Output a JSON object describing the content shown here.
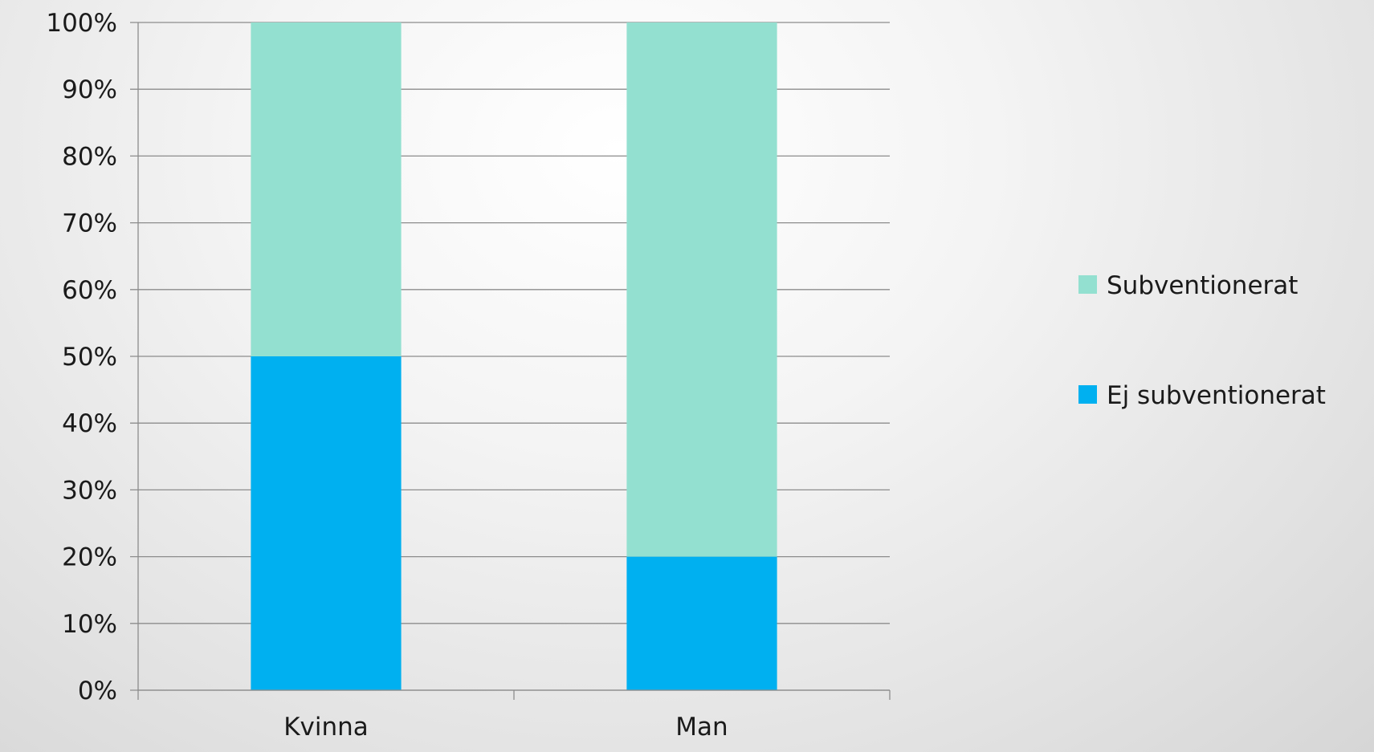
{
  "chart_data": {
    "type": "bar",
    "stacked": true,
    "percent": true,
    "title": "",
    "xlabel": "",
    "ylabel": "",
    "categories": [
      "Kvinna",
      "Man"
    ],
    "series": [
      {
        "name": "Ej subventionerat",
        "values": [
          50,
          20
        ],
        "color": "#00b0f0"
      },
      {
        "name": "Subventionerat",
        "values": [
          50,
          80
        ],
        "color": "#93e0d0"
      }
    ],
    "ylim": [
      0,
      100
    ],
    "yticks": [
      "0%",
      "10%",
      "20%",
      "30%",
      "40%",
      "50%",
      "60%",
      "70%",
      "80%",
      "90%",
      "100%"
    ],
    "grid": true,
    "legend_position": "right",
    "legend_order": [
      "Subventionerat",
      "Ej subventionerat"
    ]
  }
}
